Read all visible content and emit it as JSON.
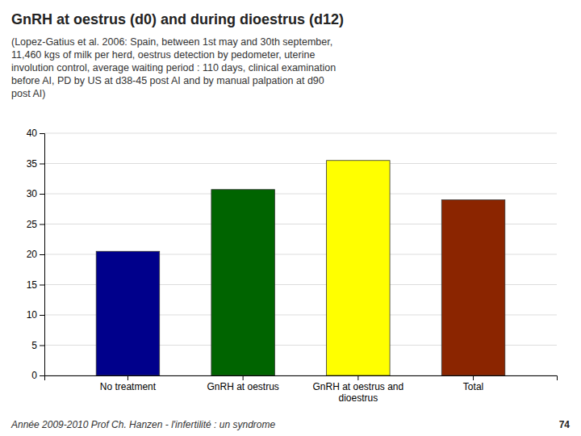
{
  "chart_data": {
    "type": "bar",
    "title": "GnRH at oestrus (d0) and during dioestrus (d12)",
    "subtitle": "(Lopez-Gatius et al. 2006: Spain, between 1st may and 30th september,\n11,460 kgs of milk per herd, oestrus detection by pedometer, uterine\ninvolution control, average waiting period : 110 days, clinical examination\nbefore AI, PD by US at d38-45 post AI and by manual palpation at d90\npost AI)",
    "categories": [
      "No treatment",
      "GnRH at oestrus",
      "GnRH at oestrus and\ndioestrus",
      "Total"
    ],
    "values": [
      20.5,
      30.7,
      35.5,
      29.0
    ],
    "colors": [
      "#00008B",
      "#006400",
      "#FFFF00",
      "#8B2500"
    ],
    "ylim": [
      0,
      40
    ],
    "yticks": [
      0,
      5,
      10,
      15,
      20,
      25,
      30,
      35,
      40
    ],
    "grid": true,
    "annotations": [
      "Année 2009-2010 Prof Ch. Hanzen - l'infertilité : un syndrome",
      "74"
    ]
  }
}
